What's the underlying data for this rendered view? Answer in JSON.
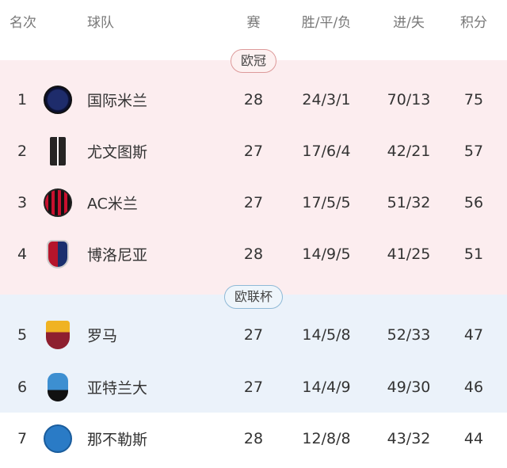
{
  "header": {
    "rank": "名次",
    "team": "球队",
    "played": "赛",
    "record": "胜/平/负",
    "goals": "进/失",
    "points": "积分"
  },
  "zones": {
    "ucl": "欧冠",
    "uel": "欧联杯"
  },
  "colors": {
    "ucl_bg": "#fcedef",
    "uel_bg": "#ebf2fa"
  },
  "rows": [
    {
      "rank": "1",
      "team": "国际米兰",
      "logo": "inter-logo",
      "played": "28",
      "record": "24/3/1",
      "goals": "70/13",
      "points": "75"
    },
    {
      "rank": "2",
      "team": "尤文图斯",
      "logo": "juventus-logo",
      "played": "27",
      "record": "17/6/4",
      "goals": "42/21",
      "points": "57"
    },
    {
      "rank": "3",
      "team": "AC米兰",
      "logo": "ac-milan-logo",
      "played": "27",
      "record": "17/5/5",
      "goals": "51/32",
      "points": "56"
    },
    {
      "rank": "4",
      "team": "博洛尼亚",
      "logo": "bologna-logo",
      "played": "28",
      "record": "14/9/5",
      "goals": "41/25",
      "points": "51"
    },
    {
      "rank": "5",
      "team": "罗马",
      "logo": "roma-logo",
      "played": "27",
      "record": "14/5/8",
      "goals": "52/33",
      "points": "47"
    },
    {
      "rank": "6",
      "team": "亚特兰大",
      "logo": "atalanta-logo",
      "played": "27",
      "record": "14/4/9",
      "goals": "49/30",
      "points": "46"
    },
    {
      "rank": "7",
      "team": "那不勒斯",
      "logo": "napoli-logo",
      "played": "28",
      "record": "12/8/8",
      "goals": "43/32",
      "points": "44"
    }
  ]
}
